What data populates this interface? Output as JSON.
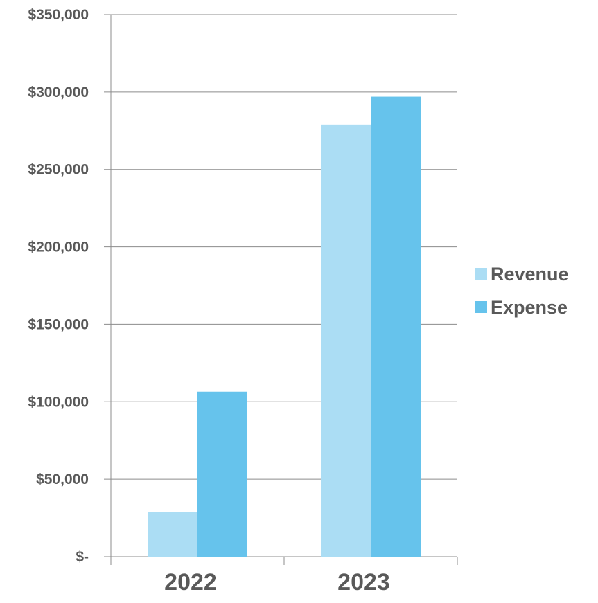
{
  "chart_data": {
    "type": "bar",
    "title": "",
    "xlabel": "",
    "ylabel": "",
    "categories": [
      "2022",
      "2023"
    ],
    "series": [
      {
        "name": "Revenue",
        "color": "#ABDDF4",
        "values": [
          29000,
          279000
        ]
      },
      {
        "name": "Expense",
        "color": "#66C3EC",
        "values": [
          106500,
          297000
        ]
      }
    ],
    "ylim": [
      0,
      350000
    ],
    "yticks": [
      {
        "value": 0,
        "label": "$-"
      },
      {
        "value": 50000,
        "label": "$50,000"
      },
      {
        "value": 100000,
        "label": "$100,000"
      },
      {
        "value": 150000,
        "label": "$150,000"
      },
      {
        "value": 200000,
        "label": "$200,000"
      },
      {
        "value": 250000,
        "label": "$250,000"
      },
      {
        "value": 300000,
        "label": "$300,000"
      },
      {
        "value": 350000,
        "label": "$350,000"
      }
    ],
    "grid": true,
    "grid_color": "#8C8C8C",
    "text_color": "#595959",
    "legend_position": "right"
  }
}
